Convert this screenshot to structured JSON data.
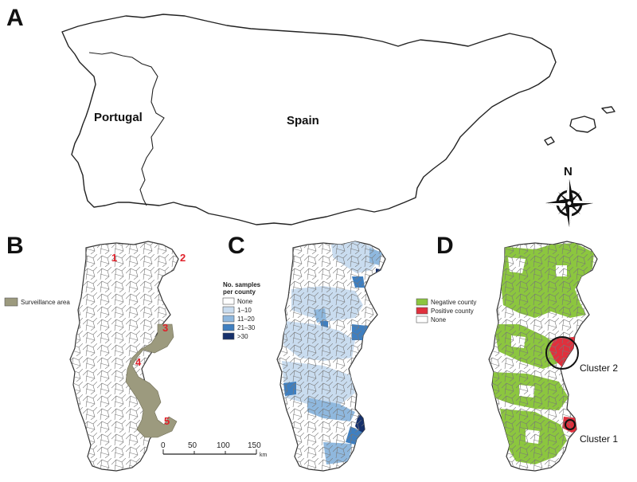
{
  "panels": {
    "a": {
      "letter": "A",
      "labels": {
        "portugal": "Portugal",
        "spain": "Spain"
      },
      "compass": {
        "north": "N"
      }
    },
    "b": {
      "letter": "B",
      "legend": {
        "surveillance_area": "Surveillance area",
        "color": "#9c9a7e"
      },
      "site_numbers": [
        "1",
        "2",
        "3",
        "4",
        "5"
      ],
      "scale": {
        "ticks": [
          "0",
          "50",
          "100",
          "150"
        ],
        "unit": "km"
      }
    },
    "c": {
      "letter": "C",
      "legend": {
        "title_line1": "No. samples",
        "title_line2": "per county",
        "items": [
          {
            "label": "None",
            "color": "#ffffff"
          },
          {
            "label": "1–10",
            "color": "#c9dcef"
          },
          {
            "label": "11–20",
            "color": "#8fb8de"
          },
          {
            "label": "21–30",
            "color": "#3f7fc0"
          },
          {
            "label": ">30",
            "color": "#16306b"
          }
        ]
      }
    },
    "d": {
      "letter": "D",
      "legend": {
        "items": [
          {
            "label": "Negative county",
            "color": "#8cc63f"
          },
          {
            "label": "Positive county",
            "color": "#e0303d"
          },
          {
            "label": "None",
            "color": "#ffffff"
          }
        ]
      },
      "clusters": {
        "cluster2": "Cluster 2",
        "cluster1": "Cluster 1"
      }
    }
  }
}
